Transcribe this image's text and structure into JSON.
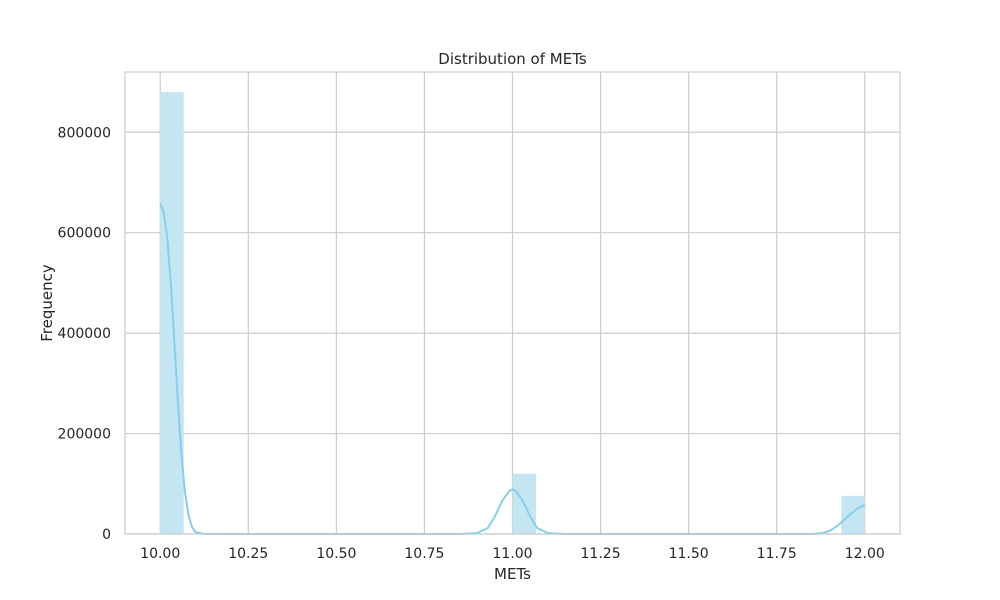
{
  "chart_data": {
    "type": "bar",
    "title": "Distribution of METs",
    "xlabel": "METs",
    "ylabel": "Frequency",
    "xlim": [
      9.9,
      12.1
    ],
    "ylim": [
      0,
      920000
    ],
    "x_ticks": [
      10.0,
      10.25,
      10.5,
      10.75,
      11.0,
      11.25,
      11.5,
      11.75,
      12.0
    ],
    "x_tick_labels": [
      "10.00",
      "10.25",
      "10.50",
      "10.75",
      "11.00",
      "11.25",
      "11.50",
      "11.75",
      "12.00"
    ],
    "y_ticks": [
      0,
      200000,
      400000,
      600000,
      800000
    ],
    "y_tick_labels": [
      "0",
      "200000",
      "400000",
      "600000",
      "800000"
    ],
    "grid": true,
    "bin_width": 0.0667,
    "bars": [
      {
        "x_start": 10.0,
        "value": 880000
      },
      {
        "x_start": 11.0,
        "value": 120000
      },
      {
        "x_start": 11.9333,
        "value": 76000
      }
    ],
    "kde_line": [
      [
        10.0,
        658000
      ],
      [
        10.01,
        640000
      ],
      [
        10.02,
        590000
      ],
      [
        10.03,
        500000
      ],
      [
        10.04,
        385000
      ],
      [
        10.05,
        265000
      ],
      [
        10.06,
        160000
      ],
      [
        10.07,
        85000
      ],
      [
        10.08,
        38000
      ],
      [
        10.09,
        14000
      ],
      [
        10.1,
        4000
      ],
      [
        10.12,
        500
      ],
      [
        10.2,
        0
      ],
      [
        10.85,
        0
      ],
      [
        10.9,
        2000
      ],
      [
        10.93,
        12000
      ],
      [
        10.95,
        35000
      ],
      [
        10.97,
        65000
      ],
      [
        10.99,
        85000
      ],
      [
        11.0,
        89000
      ],
      [
        11.01,
        85000
      ],
      [
        11.03,
        65000
      ],
      [
        11.05,
        35000
      ],
      [
        11.07,
        12000
      ],
      [
        11.1,
        2000
      ],
      [
        11.15,
        0
      ],
      [
        11.85,
        0
      ],
      [
        11.88,
        2000
      ],
      [
        11.9,
        6000
      ],
      [
        11.92,
        15000
      ],
      [
        11.94,
        27000
      ],
      [
        11.96,
        40000
      ],
      [
        11.98,
        51000
      ],
      [
        12.0,
        58000
      ]
    ],
    "colors": {
      "bar_fill": "#c4e6f3",
      "kde_line": "#87ceeb",
      "grid": "#cccccc",
      "axes_frame": "#cccccc"
    }
  }
}
